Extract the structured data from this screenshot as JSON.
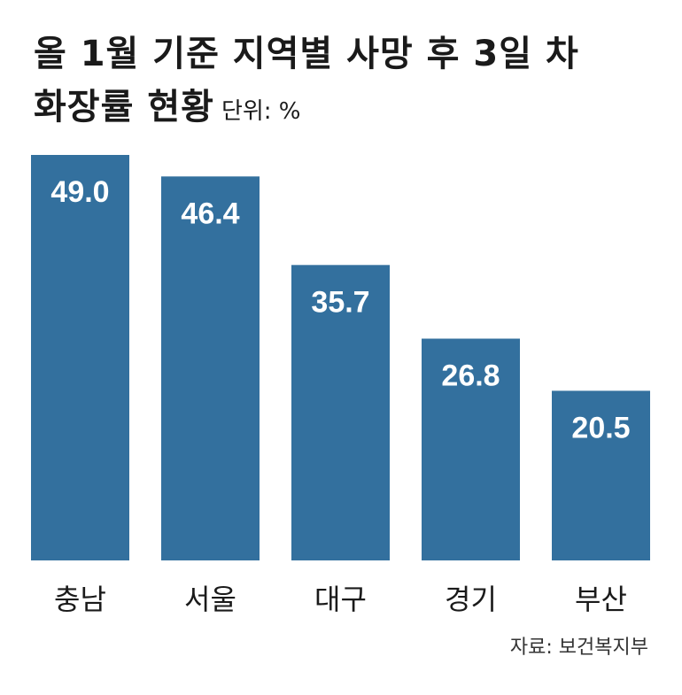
{
  "chart_data": {
    "type": "bar",
    "title": "올 1월 기준 지역별 사망 후 3일 차",
    "subtitle": "화장률 현황",
    "unit_label": "단위: %",
    "categories": [
      "충남",
      "서울",
      "대구",
      "경기",
      "부산"
    ],
    "values": [
      49.0,
      46.4,
      35.7,
      26.8,
      20.5
    ],
    "value_labels": [
      "49.0",
      "46.4",
      "35.7",
      "26.8",
      "20.5"
    ],
    "ylim": [
      0,
      49.0
    ],
    "bar_color": "#33709e",
    "grid": false,
    "legend": "none"
  },
  "source": "자료: 보건복지부"
}
